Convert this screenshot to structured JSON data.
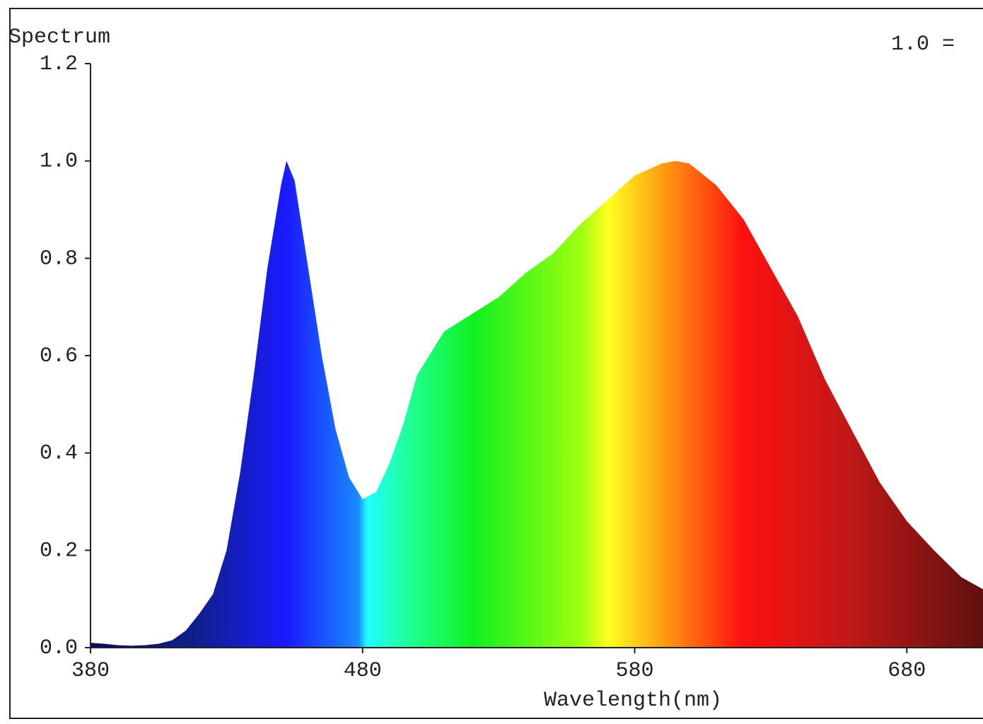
{
  "chart_data": {
    "type": "area",
    "title": "Spectrum",
    "annotation": "1.0 =",
    "x_label": "Wavelength(nm)",
    "x": [
      380,
      385,
      390,
      395,
      400,
      405,
      410,
      415,
      420,
      425,
      430,
      435,
      440,
      445,
      450,
      452,
      455,
      460,
      465,
      470,
      475,
      480,
      485,
      490,
      495,
      500,
      510,
      520,
      530,
      540,
      550,
      560,
      570,
      580,
      590,
      595,
      600,
      610,
      620,
      630,
      640,
      650,
      660,
      670,
      680,
      690,
      700,
      708
    ],
    "values": [
      0.01,
      0.008,
      0.005,
      0.004,
      0.005,
      0.008,
      0.015,
      0.035,
      0.07,
      0.11,
      0.2,
      0.36,
      0.56,
      0.78,
      0.95,
      1.0,
      0.96,
      0.78,
      0.6,
      0.45,
      0.35,
      0.305,
      0.32,
      0.38,
      0.46,
      0.56,
      0.65,
      0.685,
      0.72,
      0.77,
      0.81,
      0.87,
      0.92,
      0.97,
      0.995,
      1.0,
      0.995,
      0.95,
      0.88,
      0.78,
      0.68,
      0.55,
      0.445,
      0.34,
      0.26,
      0.2,
      0.145,
      0.12
    ],
    "xlim": [
      380,
      708
    ],
    "xticks": [
      380,
      480,
      580,
      680
    ],
    "ylim": [
      0,
      1.2
    ],
    "yticks": [
      {
        "value": 0,
        "label": "0.0"
      },
      0.2,
      0.4,
      0.6,
      0.8,
      {
        "value": 1,
        "label": "1.0"
      },
      1.2
    ]
  }
}
